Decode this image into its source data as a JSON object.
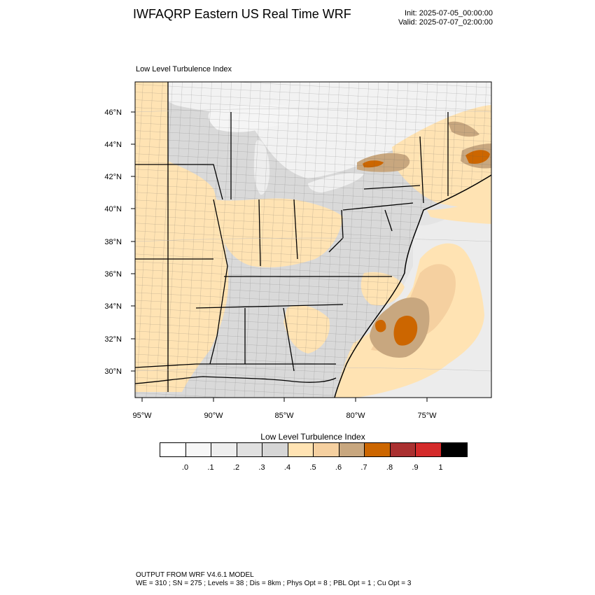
{
  "header": {
    "title": "IWFAQRP Eastern US Real Time WRF",
    "init": "Init: 2025-07-05_00:00:00",
    "valid": "Valid: 2025-07-07_02:00:00"
  },
  "panel": {
    "title": "Low Level Turbulence Index",
    "lat_labels": [
      "46°N",
      "44°N",
      "42°N",
      "40°N",
      "38°N",
      "36°N",
      "34°N",
      "32°N",
      "30°N"
    ],
    "lon_labels": [
      "95°W",
      "90°W",
      "85°W",
      "80°W",
      "75°W"
    ]
  },
  "colorbar": {
    "title": "Low Level Turbulence Index",
    "colors": [
      "#ffffff",
      "#f7f7f7",
      "#eeeeee",
      "#e0e0e0",
      "#d6d6d6",
      "#ffe3b3",
      "#f5d0a0",
      "#c8a77f",
      "#cc6600",
      "#aa3030",
      "#d42a2a",
      "#000000"
    ],
    "labels": [
      ".0",
      ".1",
      ".2",
      ".3",
      ".4",
      ".5",
      ".6",
      ".7",
      ".8",
      ".9",
      "1"
    ]
  },
  "footer": {
    "line1": "OUTPUT FROM WRF V4.6.1 MODEL",
    "line2": "WE = 310 ; SN = 275 ; Levels = 38 ; Dis = 8km ; Phys Opt = 8 ; PBL Opt = 1 ; Cu Opt = 3"
  }
}
